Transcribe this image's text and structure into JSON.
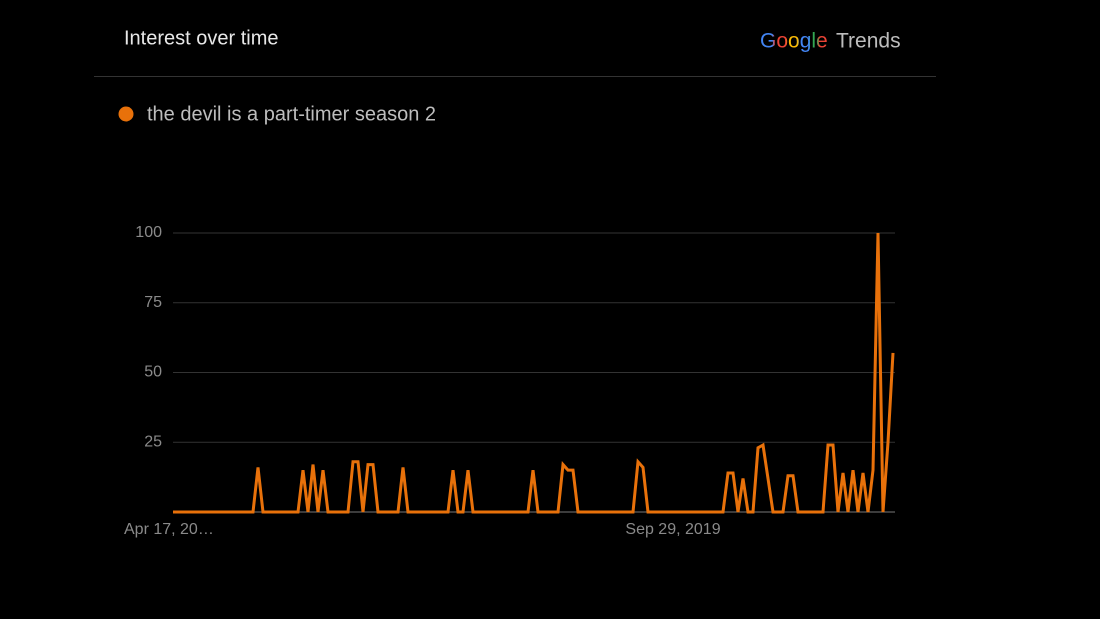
{
  "header": {
    "title": "Interest over time",
    "logo_brand": "Google",
    "logo_product": "Trends"
  },
  "chart_data": {
    "type": "line",
    "categories": [
      "Apr 17, 20…",
      null,
      null,
      null,
      null,
      null,
      null,
      null,
      null,
      null,
      null,
      null,
      null,
      null,
      null,
      null,
      null,
      null,
      null,
      null,
      null,
      null,
      null,
      null,
      null,
      null,
      null,
      null,
      null,
      null,
      null,
      null,
      null,
      null,
      null,
      null,
      null,
      null,
      null,
      null,
      null,
      null,
      null,
      null,
      null,
      null,
      null,
      null,
      null,
      null,
      null,
      null,
      null,
      null,
      null,
      null,
      null,
      null,
      null,
      null,
      null,
      null,
      null,
      null,
      null,
      null,
      null,
      null,
      null,
      null,
      null,
      null,
      null,
      null,
      null,
      null,
      null,
      null,
      null,
      null,
      null,
      null,
      null,
      null,
      null,
      null,
      null,
      null,
      null,
      null,
      null,
      null,
      null,
      null,
      null,
      null,
      null,
      null,
      null,
      null,
      "Sep 29, 2019",
      null,
      null,
      null,
      null,
      null,
      null,
      null,
      null,
      null,
      null,
      null,
      null,
      null,
      null,
      null,
      null,
      null,
      null,
      null,
      null,
      null,
      null,
      null,
      null,
      null,
      null,
      null,
      null,
      null,
      null,
      null,
      null,
      null,
      null,
      null,
      null,
      null,
      null,
      null,
      null,
      null,
      null,
      null,
      null
    ],
    "series": [
      {
        "name": "the devil is a part-timer season 2",
        "color": "#e8710a",
        "values": [
          0,
          0,
          0,
          0,
          0,
          0,
          0,
          0,
          0,
          0,
          0,
          0,
          0,
          0,
          0,
          0,
          0,
          16,
          0,
          0,
          0,
          0,
          0,
          0,
          0,
          0,
          15,
          0,
          17,
          0,
          15,
          0,
          0,
          0,
          0,
          0,
          18,
          18,
          0,
          17,
          17,
          0,
          0,
          0,
          0,
          0,
          16,
          0,
          0,
          0,
          0,
          0,
          0,
          0,
          0,
          0,
          15,
          0,
          0,
          15,
          0,
          0,
          0,
          0,
          0,
          0,
          0,
          0,
          0,
          0,
          0,
          0,
          15,
          0,
          0,
          0,
          0,
          0,
          17,
          15,
          15,
          0,
          0,
          0,
          0,
          0,
          0,
          0,
          0,
          0,
          0,
          0,
          0,
          18,
          16,
          0,
          0,
          0,
          0,
          0,
          0,
          0,
          0,
          0,
          0,
          0,
          0,
          0,
          0,
          0,
          0,
          14,
          14,
          0,
          12,
          0,
          0,
          23,
          24,
          12,
          0,
          0,
          0,
          13,
          13,
          0,
          0,
          0,
          0,
          0,
          0,
          24,
          24,
          0,
          14,
          0,
          15,
          0,
          14,
          0,
          15,
          100,
          0,
          25,
          57
        ]
      }
    ],
    "ylim": [
      0,
      100
    ],
    "yticks": [
      25,
      50,
      75,
      100
    ],
    "grid": true
  }
}
